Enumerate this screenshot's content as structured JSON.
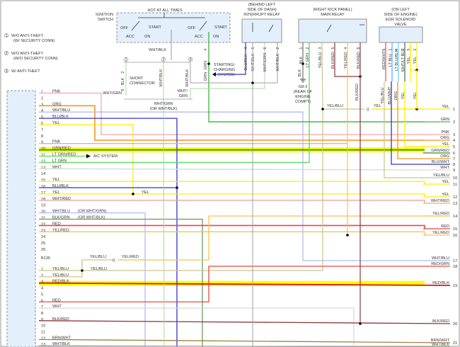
{
  "notes": [
    {
      "num": "1",
      "line1": "W/O ANTI-THEFT",
      "line2": "(W/ SECURITY CONN)"
    },
    {
      "num": "2",
      "line1": "W/O ANTI-THEFT",
      "line2": "(W/O SECURITY CONN)"
    },
    {
      "num": "3",
      "line1": "W/ ANTI-THEFT",
      "line2": ""
    }
  ],
  "ignition_switch": {
    "title1": "IGNITION",
    "title2": "SWITCH",
    "hot": "HOT AT ALL TIMES",
    "off": "OFF",
    "acc": "ACC",
    "on": "ON",
    "start": "START",
    "out_left": "WHT/BLK",
    "out_right_pin": "4",
    "out_right": "GRN"
  },
  "short_connector": {
    "label1": "SHORT",
    "label2": "CONNECTOR",
    "pin_top": "2",
    "pin_bottom": "6",
    "wire": "BLK",
    "branches": [
      "1",
      "2",
      "3"
    ],
    "wht_blk": "WHT/BLK",
    "wht_blk_3": "WHT/BLK",
    "wht_grn_left": "WHT/GRN",
    "wht_grn_right1": "WHT/",
    "wht_grn_right2": "GRN",
    "bottom1": "WHT/GRN",
    "bottom2": "(OR WHT/BLK)"
  },
  "starting_system": {
    "line1": "STARTING/",
    "line2": "CHARGING",
    "line3": "SYSTEM",
    "wire": "GRN"
  },
  "interrupt_relay": {
    "loc1": "(BEHIND LEFT",
    "loc2": "SIDE OF DASH)",
    "title": "INTERRUPT RELAY",
    "pins": [
      {
        "pin": "4",
        "wire": "BLU/BLK"
      },
      {
        "pin": "1",
        "wire": "WHT/BLK"
      },
      {
        "pin": "6",
        "wire": "WHT/GRN"
      },
      {
        "pin": "2",
        "wire": "WHT/BLK"
      }
    ]
  },
  "main_relay": {
    "loc": "(RIGHT KICK PANEL)",
    "title": "MAIN RELAY",
    "pins": [
      {
        "pin": "1",
        "wire": "BLK"
      },
      {
        "pin": "2",
        "wire": "LT GRN"
      },
      {
        "pin": "3",
        "wire": "YEL/BLU"
      },
      {
        "pin": "5",
        "wire": "BLK/RED"
      },
      {
        "pin": "4",
        "wire": "YEL/RED"
      },
      {
        "pin": "6",
        "wire": "BLK/RED"
      }
    ],
    "ground_wire": "BLK",
    "ground": "G8-3",
    "ground_loc1": "(REAR OF",
    "ground_loc2": "ENGINE",
    "ground_loc3": "COMPT)",
    "lower_blk_red": "BLK/RED"
  },
  "egr_valve": {
    "loc1": "(ON LEFT",
    "loc2": "SIDE OF ENGINE)",
    "title1": "EGR SOLENOID",
    "title2": "VALVE",
    "pins": [
      {
        "pin": "6",
        "wire": "RED/WHT"
      },
      {
        "pin": "1",
        "wire": "LT BLU"
      },
      {
        "pin": "4",
        "wire": "LT BLU/BLK"
      },
      {
        "pin": "3",
        "wire": "WHT/LT BLU"
      },
      {
        "pin": "5",
        "wire": "YEL"
      },
      {
        "pin": "2",
        "wire": "YEL"
      }
    ],
    "lower_wires": [
      "YEL/BLU",
      "BLU/WHT",
      "ORG",
      "YEL",
      "YEL"
    ]
  },
  "mid_labels": {
    "yel_blu": "YEL/BLU",
    "yel": "YEL",
    "yel_17": "YEL",
    "ac_system": "A/C SYSTEM",
    "or_wht_grn": "(OR WHT/GRN)",
    "or_wht_blk": "(OR WHT/BLK)",
    "b135_yel_blu_top": "YEL/BLU",
    "b135_yel_red": "YEL/RED",
    "b135_yel_blu": "YEL/BLU"
  },
  "connector_left": {
    "pins": [
      {
        "pin": "1",
        "wire": "PNK"
      },
      {
        "pin": "2",
        "wire": ""
      },
      {
        "pin": "3",
        "wire": "ORG"
      },
      {
        "pin": "4",
        "wire": "WHT/BLU"
      },
      {
        "pin": "5",
        "wire": "BLU/BLK"
      },
      {
        "pin": "6",
        "wire": "YEL"
      },
      {
        "pin": "7",
        "wire": ""
      },
      {
        "pin": "8",
        "wire": ""
      },
      {
        "pin": "9",
        "wire": "PNK"
      },
      {
        "pin": "10",
        "wire": "GRN/RED"
      },
      {
        "pin": "11",
        "wire": "LT GRN/RED"
      },
      {
        "pin": "12",
        "wire": "LT GRN"
      },
      {
        "pin": "13",
        "wire": "WHT"
      },
      {
        "pin": "14",
        "wire": ""
      },
      {
        "pin": "15",
        "wire": "YEL"
      },
      {
        "pin": "16",
        "wire": "BLU/BLK"
      },
      {
        "pin": "17",
        "wire": "YEL"
      },
      {
        "pin": "18",
        "wire": "WHT/RED"
      },
      {
        "pin": "19",
        "wire": ""
      },
      {
        "pin": "20",
        "wire": "WHT/BLU"
      },
      {
        "pin": "21",
        "wire": "BLK/GRN"
      },
      {
        "pin": "22",
        "wire": "RED"
      },
      {
        "pin": "23",
        "wire": "YEL/RED"
      },
      {
        "pin": "24",
        "wire": ""
      },
      {
        "pin": "25",
        "wire": ""
      },
      {
        "pin": "26",
        "wire": ""
      }
    ]
  },
  "connector_b135": {
    "name": "B135",
    "pins": [
      {
        "pin": "1",
        "wire": "YEL/BLU"
      },
      {
        "pin": "2",
        "wire": "YEL/BLU"
      },
      {
        "pin": "3",
        "wire": "RED/BLK"
      },
      {
        "pin": "4",
        "wire": ""
      },
      {
        "pin": "5",
        "wire": ""
      },
      {
        "pin": "6",
        "wire": "RED"
      },
      {
        "pin": "7",
        "wire": "WHT"
      },
      {
        "pin": "8",
        "wire": ""
      },
      {
        "pin": "9",
        "wire": "BLK/RED"
      },
      {
        "pin": "10",
        "wire": ""
      },
      {
        "pin": "11",
        "wire": ""
      },
      {
        "pin": "12",
        "wire": "BRN/WHT"
      },
      {
        "pin": "13",
        "wire": "WHT/BLK"
      }
    ]
  },
  "connector_right": {
    "pins": [
      {
        "pin": "1",
        "wire": "YEL"
      },
      {
        "pin": "2",
        "wire": "GRN"
      },
      {
        "pin": "3",
        "wire": "PNK"
      },
      {
        "pin": "4",
        "wire": "ORG"
      },
      {
        "pin": "5",
        "wire": "YEL"
      },
      {
        "pin": "6",
        "wire": "GRN/RED"
      },
      {
        "pin": "7",
        "wire": "ORG"
      },
      {
        "pin": "8",
        "wire": "BLU/WHT"
      },
      {
        "pin": "9",
        "wire": "WHT"
      },
      {
        "pin": "10",
        "wire": "YEL/BLU"
      },
      {
        "pin": "11",
        "wire": "YEL"
      },
      {
        "pin": "12",
        "wire": "YEL"
      },
      {
        "pin": "13",
        "wire": "WHT/RED"
      },
      {
        "pin": "14",
        "wire": "YEL/RED"
      },
      {
        "pin": "15",
        "wire": "RED"
      },
      {
        "pin": "16",
        "wire": "YEL/RED"
      },
      {
        "pin": "17",
        "wire": "WHT/BLU"
      },
      {
        "pin": "18",
        "wire": "RED/GRN"
      },
      {
        "pin": "19",
        "wire": "RED/BLK"
      },
      {
        "pin": "20",
        "wire": "BLK/RED"
      },
      {
        "pin": "21",
        "wire": "BRN/WHT"
      },
      {
        "pin": "22",
        "wire": "WHT/BLK"
      }
    ]
  },
  "colors": {
    "PNK": "#f4a3b4",
    "ORG": "#f7941d",
    "WHT/BLU": "#b8b8f0",
    "BLU/BLK": "#3333cc",
    "YEL": "#ffee00",
    "GRN/RED": "#2e8b2e",
    "LT GRN": "#55dd55",
    "WHT": "#d8d8d8",
    "WHT/RED": "#f0a0a0",
    "BLK/GRN": "#6a9a5a",
    "RED": "#ee4444",
    "YEL/RED": "#ffc04a",
    "YEL/BLU": "#c8c890",
    "RED/BLK": "#dd1111",
    "BLK/RED": "#8b3a3a",
    "BRN/WHT": "#a08040",
    "WHT/GRN": "#a8d8a0",
    "WHT/BLK": "#a0a0a0",
    "GRN": "#44bb44",
    "BLK": "#555555",
    "highlight": "#ffff00",
    "component_fill": "#e3f0fb"
  }
}
